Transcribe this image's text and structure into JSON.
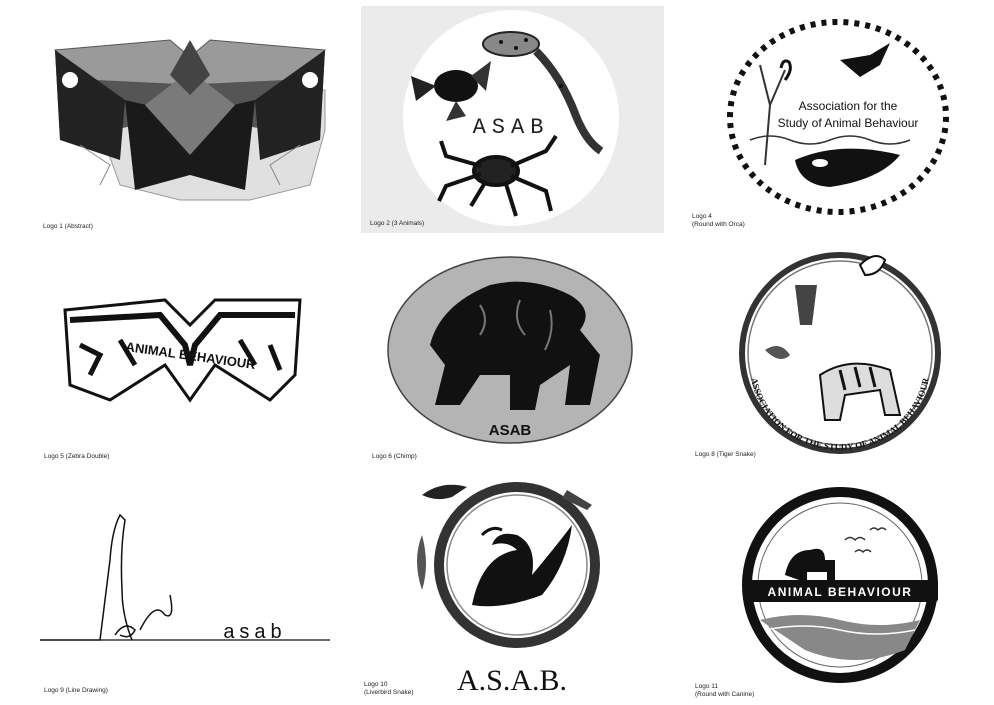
{
  "logos": [
    {
      "caption": "Logo 1 (Abstract)"
    },
    {
      "caption": "Logo 2 (3 Animals)",
      "text": "ASAB"
    },
    {
      "caption_line1": "Logo 4",
      "caption_line2": "(Round with Orca)",
      "text_line1": "Association for the",
      "text_line2": "Study of Animal Behaviour"
    },
    {
      "caption": "Logo 5 (Zebra Double)",
      "text": "ANIMAL BEHAVIOUR"
    },
    {
      "caption": "Logo 6 (Chimp)",
      "text": "ASAB"
    },
    {
      "caption": "Logo 8 (Tiger Snake)",
      "text": "ASSOCIATION FOR THE STUDY OF ANIMAL BEHAVIOUR"
    },
    {
      "caption": "Logo 9 (Line Drawing)",
      "text": "asab"
    },
    {
      "caption_line1": "Logo 10",
      "caption_line2": "(Liverbird Snake)",
      "text": "A.S.A.B."
    },
    {
      "caption_line1": "Logo 11",
      "caption_line2": "(Round with Canine)",
      "text": "ANIMAL BEHAVIOUR"
    }
  ]
}
